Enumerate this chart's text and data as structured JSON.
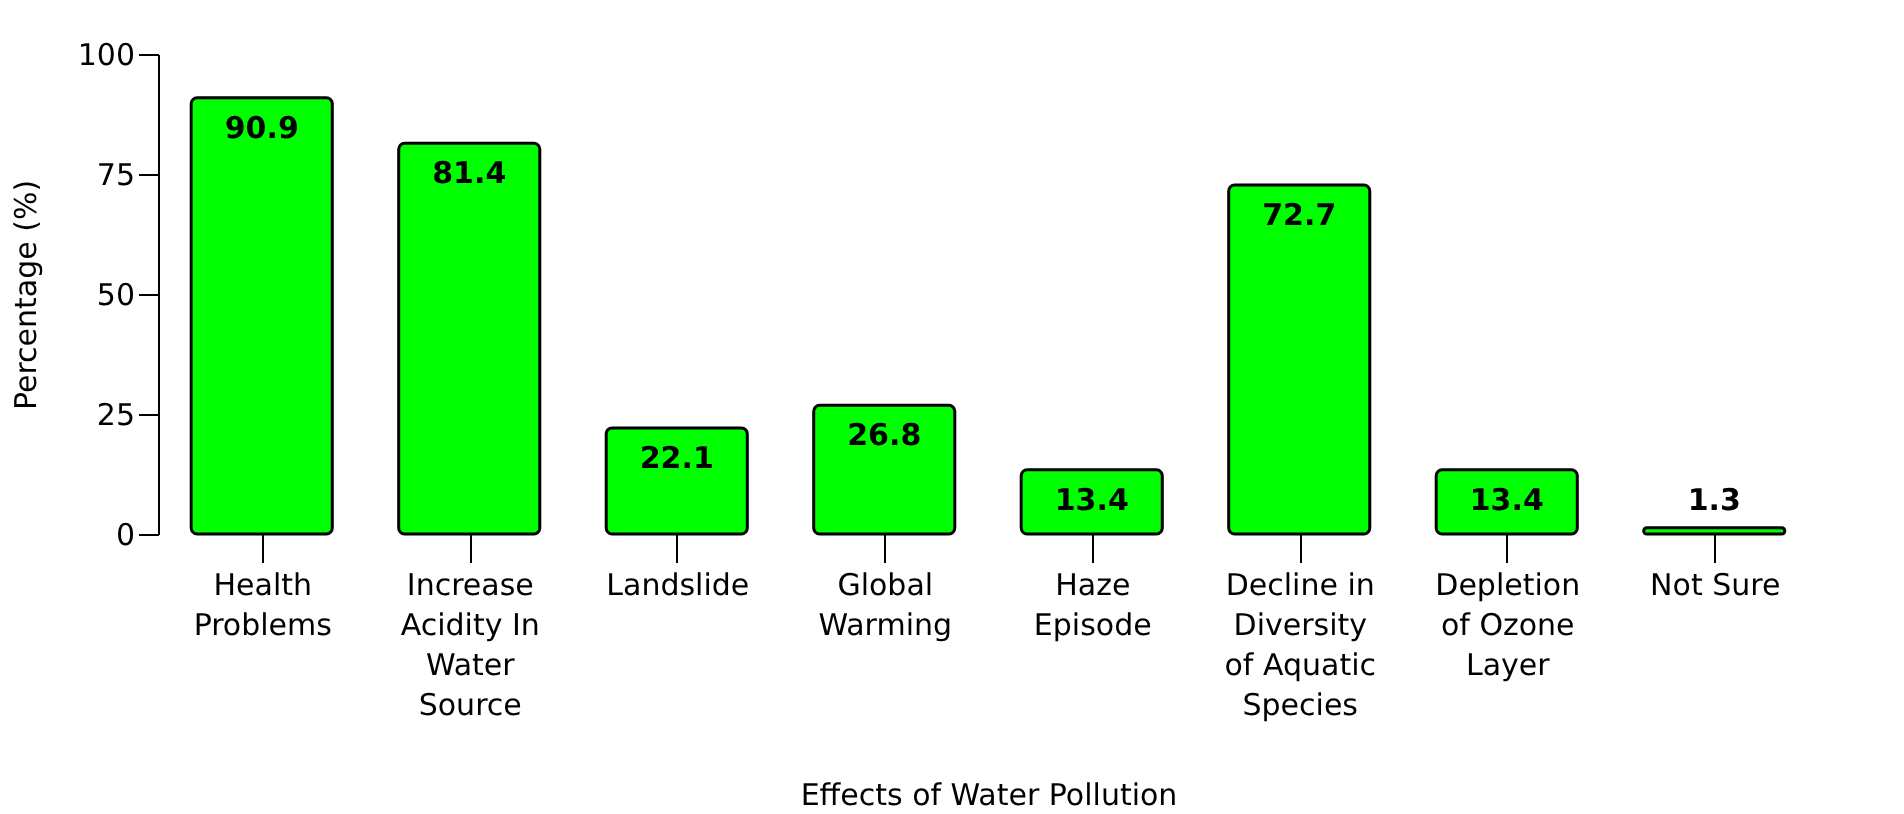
{
  "chart_data": {
    "type": "bar",
    "xlabel": "Effects of Water Pollution",
    "ylabel": "Percentage (%)",
    "categories": [
      "Health Problems",
      "Increase Acidity In Water Source",
      "Landslide",
      "Global Warming",
      "Haze Episode",
      "Decline in Diversity of Aquatic Species",
      "Depletion of Ozone Layer",
      "Not Sure"
    ],
    "values": [
      90.9,
      81.4,
      22.1,
      26.8,
      13.4,
      72.7,
      13.4,
      1.3
    ],
    "color": "#00ff00",
    "ylim": [
      0,
      100
    ],
    "yticks": [
      0,
      25,
      50,
      75,
      100
    ],
    "grid": false,
    "data_labels": true
  }
}
